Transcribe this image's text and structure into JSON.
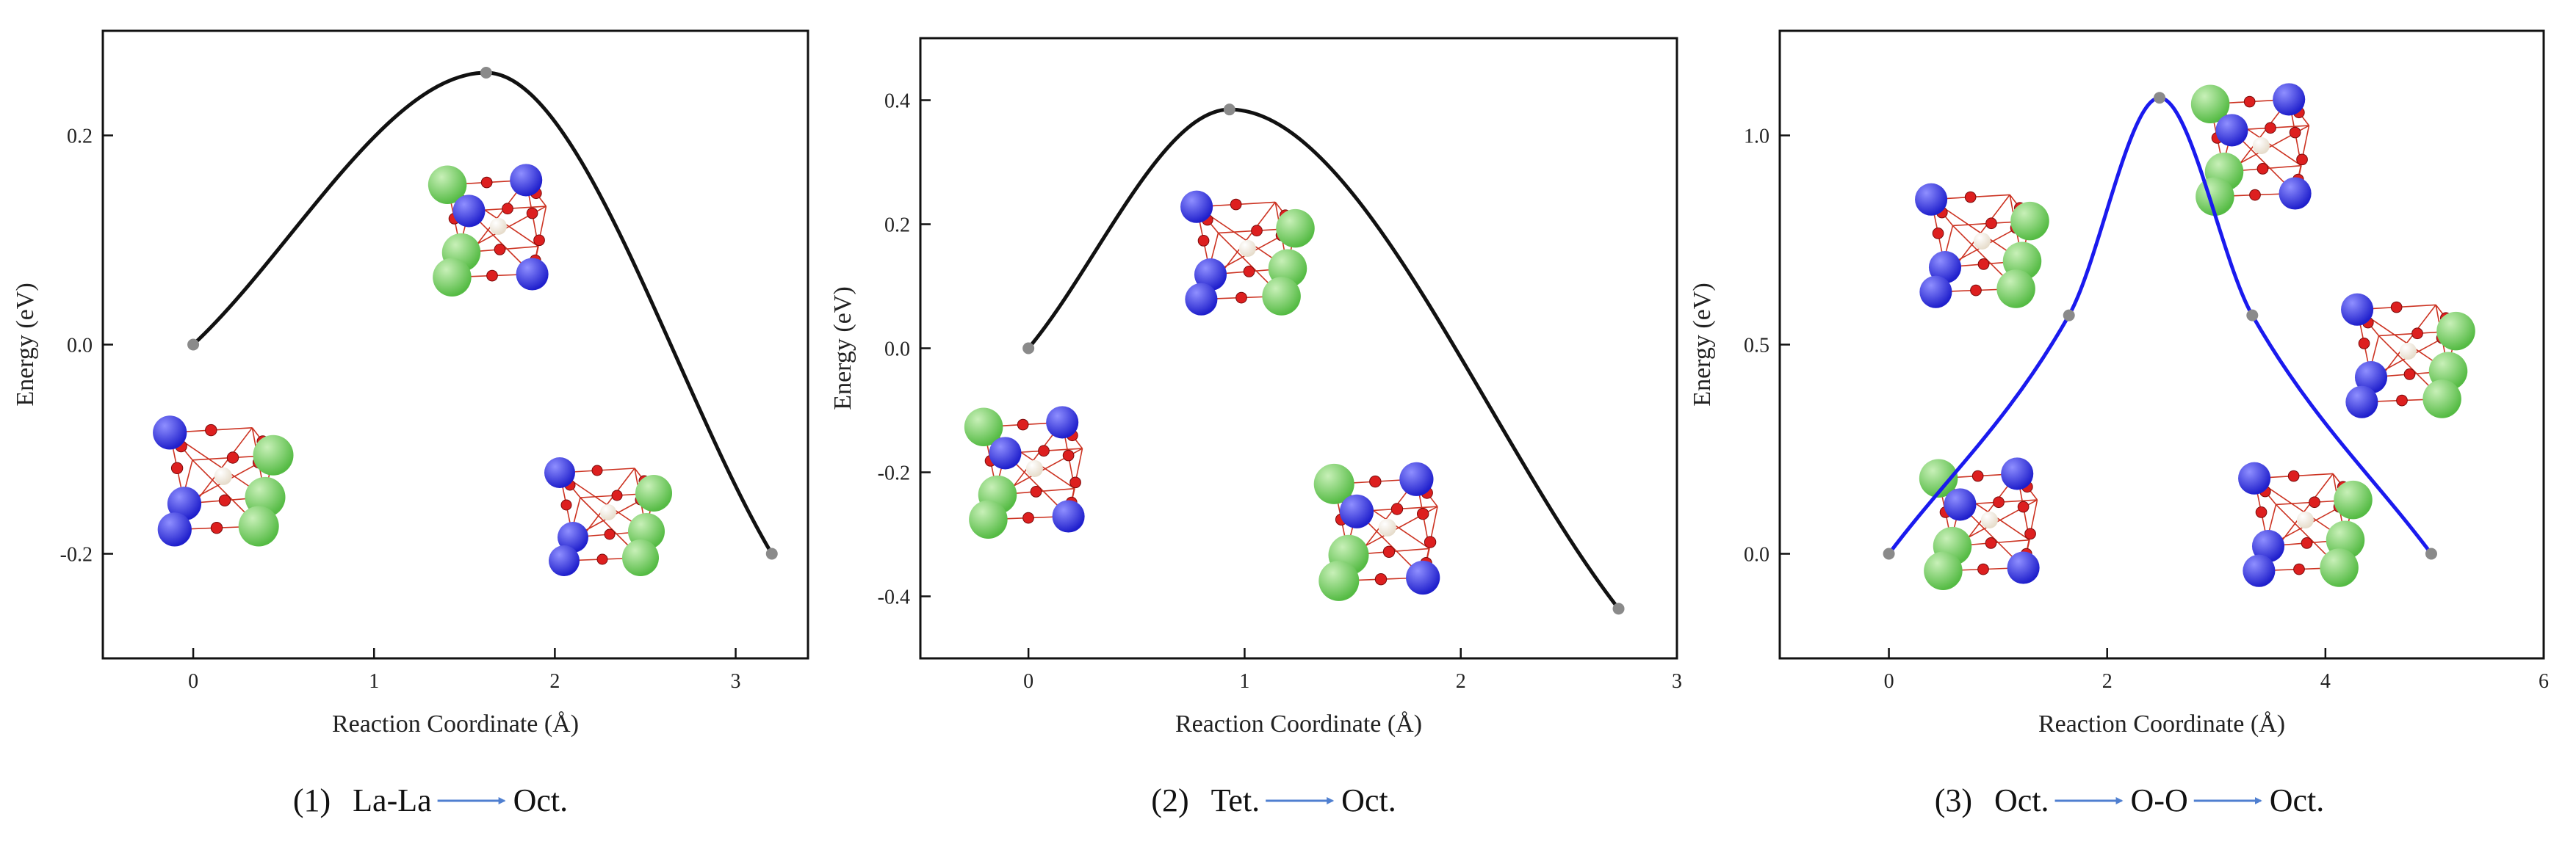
{
  "colors": {
    "frame": "#111111",
    "black_curve": "#111111",
    "blue_curve": "#1a1aee",
    "point": "#8a8a8a",
    "arrow": "#4f7fd0",
    "la_atom": "#55bb44",
    "o_atom": "#dd1f1f",
    "metal_atom": "#1f1fcc",
    "h_atom": "#e6dccb"
  },
  "chart_data": [
    {
      "type": "line",
      "panel": "1",
      "xlabel": "Reaction Coordinate (Å)",
      "ylabel": "Energy (eV)",
      "xlim": [
        -0.5,
        3.4
      ],
      "ylim": [
        -0.3,
        0.3
      ],
      "xticks": [
        0,
        1,
        2,
        3
      ],
      "xtick_labels": [
        "0",
        "1",
        "2",
        "3"
      ],
      "yticks": [
        -0.2,
        0.0,
        0.2
      ],
      "ytick_labels": [
        "-0.2",
        "0.0",
        "0.2"
      ],
      "series": [
        {
          "name": "La-La to Oct. path",
          "color": "black",
          "points": [
            [
              0.0,
              0.0
            ],
            [
              1.62,
              0.26
            ],
            [
              3.2,
              -0.2
            ]
          ]
        }
      ],
      "caption": {
        "index": "(1)",
        "steps": [
          "La-La",
          "Oct."
        ]
      }
    },
    {
      "type": "line",
      "panel": "2",
      "xlabel": "Reaction Coordinate (Å)",
      "ylabel": "Energy (eV)",
      "xlim": [
        -0.5,
        3.0
      ],
      "ylim": [
        -0.5,
        0.5
      ],
      "xticks": [
        0,
        1,
        2,
        3
      ],
      "xtick_labels": [
        "0",
        "1",
        "2",
        "3"
      ],
      "yticks": [
        -0.4,
        -0.2,
        0.0,
        0.2,
        0.4
      ],
      "ytick_labels": [
        "-0.4",
        "-0.2",
        "0.0",
        "0.2",
        "0.4"
      ],
      "series": [
        {
          "name": "Tet. to Oct. path",
          "color": "black",
          "points": [
            [
              0.0,
              0.0
            ],
            [
              0.93,
              0.385
            ],
            [
              2.73,
              -0.42
            ]
          ]
        }
      ],
      "caption": {
        "index": "(2)",
        "steps": [
          "Tet.",
          "Oct."
        ]
      }
    },
    {
      "type": "line",
      "panel": "3",
      "xlabel": "Reaction Coordinate (Å)",
      "ylabel": "Energy (eV)",
      "xlim": [
        -1.0,
        6.0
      ],
      "ylim": [
        -0.25,
        1.25
      ],
      "xticks": [
        0,
        2,
        4,
        6
      ],
      "xtick_labels": [
        "0",
        "2",
        "4",
        "6"
      ],
      "yticks": [
        0.0,
        0.5,
        1.0
      ],
      "ytick_labels": [
        "0.0",
        "0.5",
        "1.0"
      ],
      "series": [
        {
          "name": "Oct. to O-O to Oct. path",
          "color": "blue",
          "points": [
            [
              0.0,
              0.0
            ],
            [
              1.65,
              0.57
            ],
            [
              2.48,
              1.09
            ],
            [
              3.33,
              0.57
            ],
            [
              4.97,
              0.0
            ]
          ]
        }
      ],
      "caption": {
        "index": "(3)",
        "steps": [
          "Oct.",
          "O-O",
          "Oct."
        ]
      }
    }
  ]
}
